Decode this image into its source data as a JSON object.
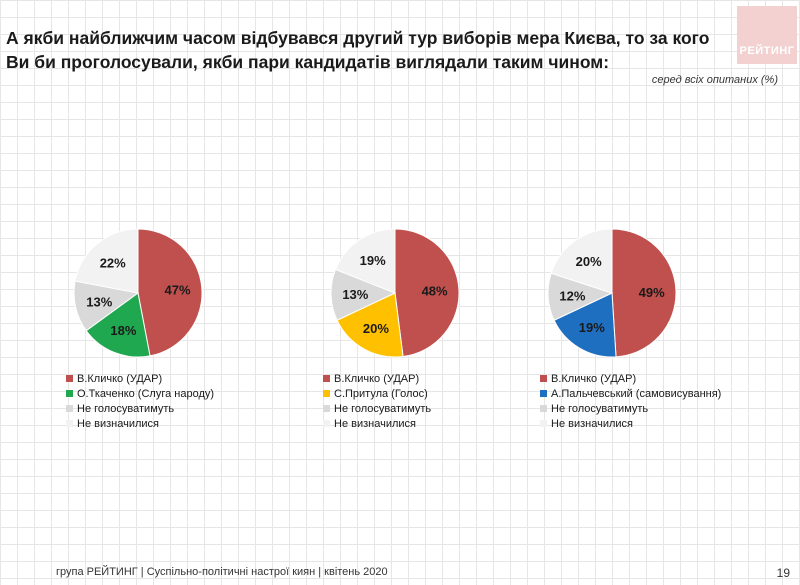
{
  "logo": "РЕЙТИНГ",
  "title": "А якби найближчим часом відбувався другий тур виборів мера Києва, то за кого Ви би проголосували, якби пари кандидатів виглядали таким чином:",
  "subtitle": "серед всіх опитаних (%)",
  "chart_data": [
    {
      "type": "pie",
      "series": [
        {
          "name": "В.Кличко (УДАР)",
          "value": 47,
          "label": "47%",
          "color": "#c0504d"
        },
        {
          "name": "О.Ткаченко (Слуга народу)",
          "value": 18,
          "label": "18%",
          "color": "#1fa84f"
        },
        {
          "name": "Не голосуватимуть",
          "value": 13,
          "label": "13%",
          "color": "#d9d9d9"
        },
        {
          "name": "Не визначилися",
          "value": 22,
          "label": "22%",
          "color": "#f2f2f2"
        }
      ]
    },
    {
      "type": "pie",
      "series": [
        {
          "name": "В.Кличко (УДАР)",
          "value": 48,
          "label": "48%",
          "color": "#c0504d"
        },
        {
          "name": "С.Притула (Голос)",
          "value": 20,
          "label": "20%",
          "color": "#ffc000"
        },
        {
          "name": "Не голосуватимуть",
          "value": 13,
          "label": "13%",
          "color": "#d9d9d9"
        },
        {
          "name": "Не визначилися",
          "value": 19,
          "label": "19%",
          "color": "#f2f2f2"
        }
      ]
    },
    {
      "type": "pie",
      "series": [
        {
          "name": "В.Кличко (УДАР)",
          "value": 49,
          "label": "49%",
          "color": "#c0504d"
        },
        {
          "name": "А.Пальчевський (самовисування)",
          "value": 19,
          "label": "19%",
          "color": "#1f6fc1"
        },
        {
          "name": "Не голосуватимуть",
          "value": 12,
          "label": "12%",
          "color": "#d9d9d9"
        },
        {
          "name": "Не визначилися",
          "value": 20,
          "label": "20%",
          "color": "#f2f2f2"
        }
      ]
    }
  ],
  "footer": "група РЕЙТИНГ | Суспільно-політичні настрої киян | квітень  2020",
  "page_number": "19"
}
